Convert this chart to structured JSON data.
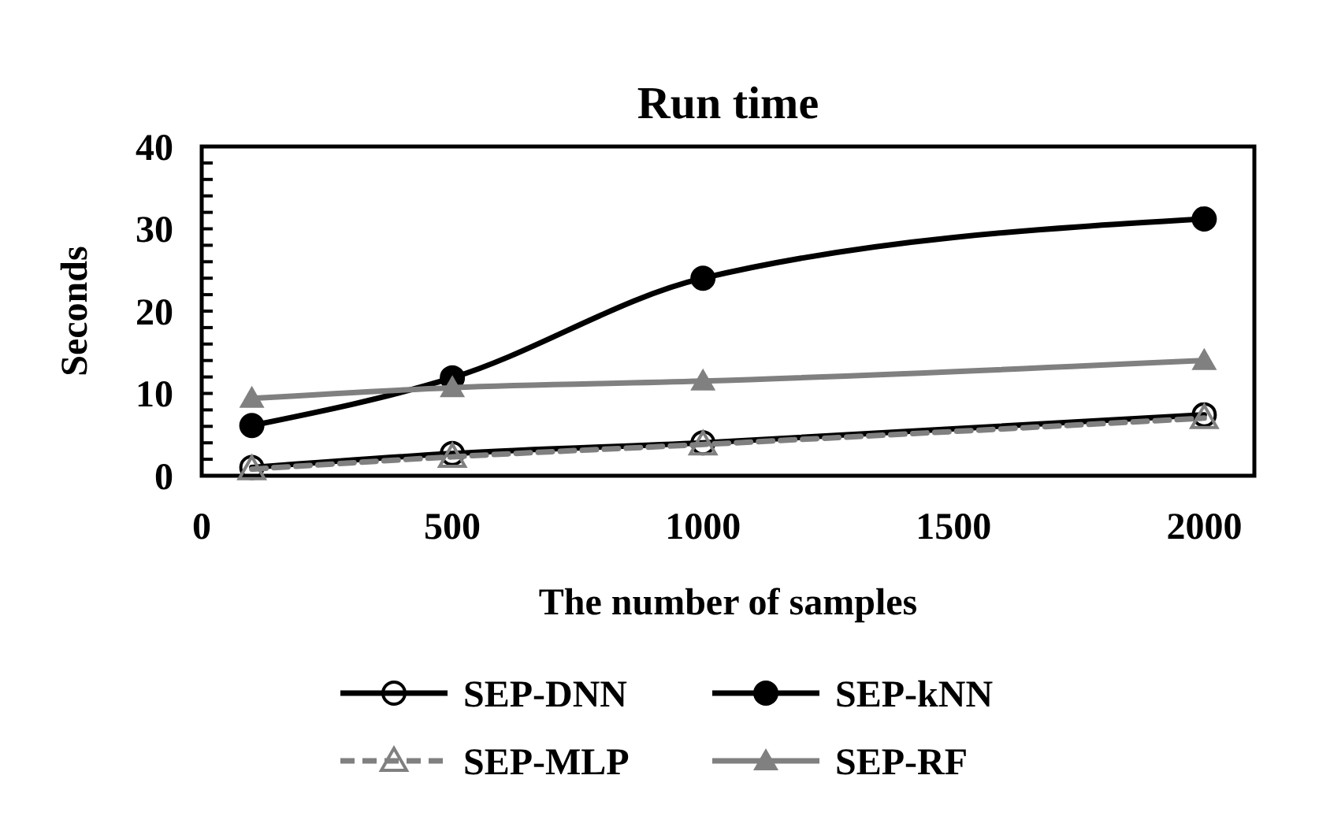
{
  "chart_data": {
    "type": "line",
    "title": "Run time",
    "xlabel": "The number of samples",
    "ylabel": "Seconds",
    "x": [
      100,
      500,
      1000,
      2000
    ],
    "series": [
      {
        "name": "SEP-DNN",
        "color": "#000000",
        "values": [
          1.0,
          2.7,
          4.0,
          7.4
        ],
        "marker": "circle",
        "line_style": "solid"
      },
      {
        "name": "SEP-kNN",
        "color": "#000000",
        "values": [
          6.1,
          11.9,
          24.0,
          31.2
        ],
        "marker": "circle",
        "line_style": "solid"
      },
      {
        "name": "SEP-MLP",
        "color": "#808080",
        "values": [
          0.8,
          2.3,
          3.8,
          7.0
        ],
        "marker": "triangle",
        "line_style": "dashed"
      },
      {
        "name": "SEP-RF",
        "color": "#808080",
        "values": [
          9.4,
          10.7,
          11.5,
          14.0
        ],
        "marker": "triangle",
        "line_style": "solid"
      }
    ],
    "xlim": [
      0,
      2100
    ],
    "xticks": [
      0,
      500,
      1000,
      1500,
      2000
    ],
    "ylim": [
      0,
      40
    ],
    "yticks": [
      0,
      {
        "value": 2,
        "label": null
      },
      {
        "value": 4,
        "label": null
      },
      {
        "value": 6,
        "label": null
      },
      {
        "value": 8,
        "label": null
      },
      10,
      {
        "value": 12,
        "label": null
      },
      {
        "value": 14,
        "label": null
      },
      {
        "value": 16,
        "label": null
      },
      {
        "value": 18,
        "label": null
      },
      20,
      {
        "value": 22,
        "label": null
      },
      {
        "value": 24,
        "label": null
      },
      {
        "value": 26,
        "label": null
      },
      {
        "value": 28,
        "label": null
      },
      30,
      {
        "value": 32,
        "label": null
      },
      {
        "value": 34,
        "label": null
      },
      {
        "value": 36,
        "label": null
      },
      {
        "value": 38,
        "label": null
      },
      40
    ],
    "grid": false,
    "legend": "bottom"
  }
}
